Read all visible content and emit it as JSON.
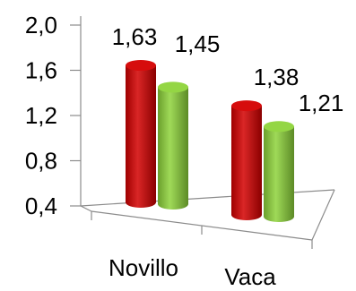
{
  "chart_data": {
    "type": "bar",
    "style": "3d-cylinder",
    "categories": [
      "Novillo",
      "Vaca"
    ],
    "series": [
      {
        "color": "#d40000",
        "values": [
          1.63,
          1.38
        ]
      },
      {
        "color": "#8ed43a",
        "values": [
          1.45,
          1.21
        ]
      }
    ],
    "data_labels": [
      "1,63",
      "1,45",
      "1,38",
      "1,21"
    ],
    "y_ticks": [
      "2,0",
      "1,6",
      "1,2",
      "0,8",
      "0,4"
    ],
    "y_tick_values": [
      2.0,
      1.6,
      1.2,
      0.8,
      0.4
    ],
    "ylim": [
      0.4,
      2.0
    ],
    "title": "",
    "xlabel": "",
    "ylabel": "",
    "grid": false,
    "legend": "none"
  }
}
